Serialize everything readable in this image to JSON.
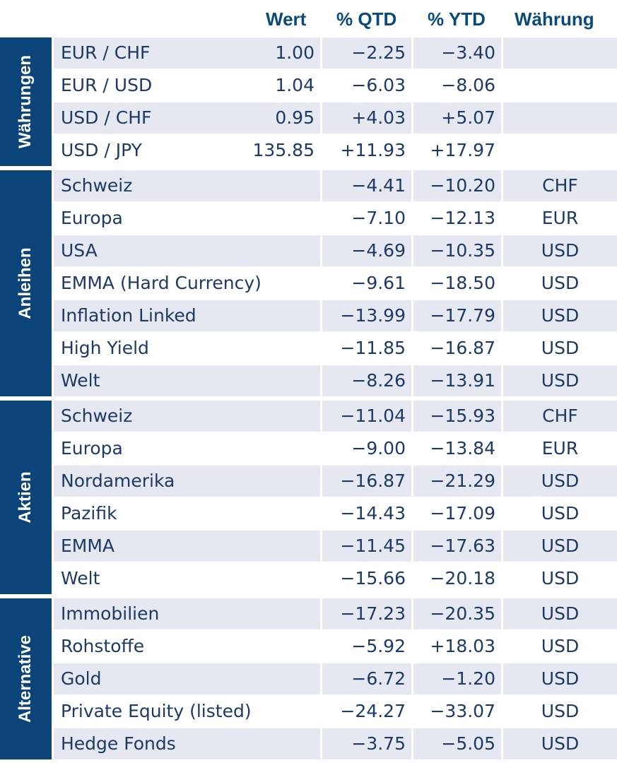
{
  "header": {
    "wert": "Wert",
    "qtd": "% QTD",
    "ytd": "% YTD",
    "currency": "Währung"
  },
  "groups": [
    {
      "label": "Währungen",
      "rows": [
        {
          "name": "EUR / CHF",
          "wert": "1.00",
          "qtd": "−2.25",
          "ytd": "−3.40",
          "currency": ""
        },
        {
          "name": "EUR / USD",
          "wert": "1.04",
          "qtd": "−6.03",
          "ytd": "−8.06",
          "currency": ""
        },
        {
          "name": "USD / CHF",
          "wert": "0.95",
          "qtd": "+4.03",
          "ytd": "+5.07",
          "currency": ""
        },
        {
          "name": "USD / JPY",
          "wert": "135.85",
          "qtd": "+11.93",
          "ytd": "+17.97",
          "currency": ""
        }
      ]
    },
    {
      "label": "Anleihen",
      "rows": [
        {
          "name": "Schweiz",
          "wert": "",
          "qtd": "−4.41",
          "ytd": "−10.20",
          "currency": "CHF"
        },
        {
          "name": "Europa",
          "wert": "",
          "qtd": "−7.10",
          "ytd": "−12.13",
          "currency": "EUR"
        },
        {
          "name": "USA",
          "wert": "",
          "qtd": "−4.69",
          "ytd": "−10.35",
          "currency": "USD"
        },
        {
          "name": "EMMA (Hard Currency)",
          "wert": "",
          "qtd": "−9.61",
          "ytd": "−18.50",
          "currency": "USD"
        },
        {
          "name": "Inflation Linked",
          "wert": "",
          "qtd": "−13.99",
          "ytd": "−17.79",
          "currency": "USD"
        },
        {
          "name": "High Yield",
          "wert": "",
          "qtd": "−11.85",
          "ytd": "−16.87",
          "currency": "USD"
        },
        {
          "name": "Welt",
          "wert": "",
          "qtd": "−8.26",
          "ytd": "−13.91",
          "currency": "USD"
        }
      ]
    },
    {
      "label": "Aktien",
      "rows": [
        {
          "name": "Schweiz",
          "wert": "",
          "qtd": "−11.04",
          "ytd": "−15.93",
          "currency": "CHF"
        },
        {
          "name": "Europa",
          "wert": "",
          "qtd": "−9.00",
          "ytd": "−13.84",
          "currency": "EUR"
        },
        {
          "name": "Nordamerika",
          "wert": "",
          "qtd": "−16.87",
          "ytd": "−21.29",
          "currency": "USD"
        },
        {
          "name": "Pazifik",
          "wert": "",
          "qtd": "−14.43",
          "ytd": "−17.09",
          "currency": "USD"
        },
        {
          "name": "EMMA",
          "wert": "",
          "qtd": "−11.45",
          "ytd": "−17.63",
          "currency": "USD"
        },
        {
          "name": "Welt",
          "wert": "",
          "qtd": "−15.66",
          "ytd": "−20.18",
          "currency": "USD"
        }
      ]
    },
    {
      "label": "Alternative",
      "rows": [
        {
          "name": "Immobilien",
          "wert": "",
          "qtd": "−17.23",
          "ytd": "−20.35",
          "currency": "USD"
        },
        {
          "name": "Rohstoffe",
          "wert": "",
          "qtd": "−5.92",
          "ytd": "+18.03",
          "currency": "USD"
        },
        {
          "name": "Gold",
          "wert": "",
          "qtd": "−6.72",
          "ytd": "−1.20",
          "currency": "USD"
        },
        {
          "name": "Private Equity (listed)",
          "wert": "",
          "qtd": "−24.27",
          "ytd": "−33.07",
          "currency": "USD"
        },
        {
          "name": "Hedge Fonds",
          "wert": "",
          "qtd": "−3.75",
          "ytd": "−5.05",
          "currency": "USD"
        }
      ]
    }
  ]
}
